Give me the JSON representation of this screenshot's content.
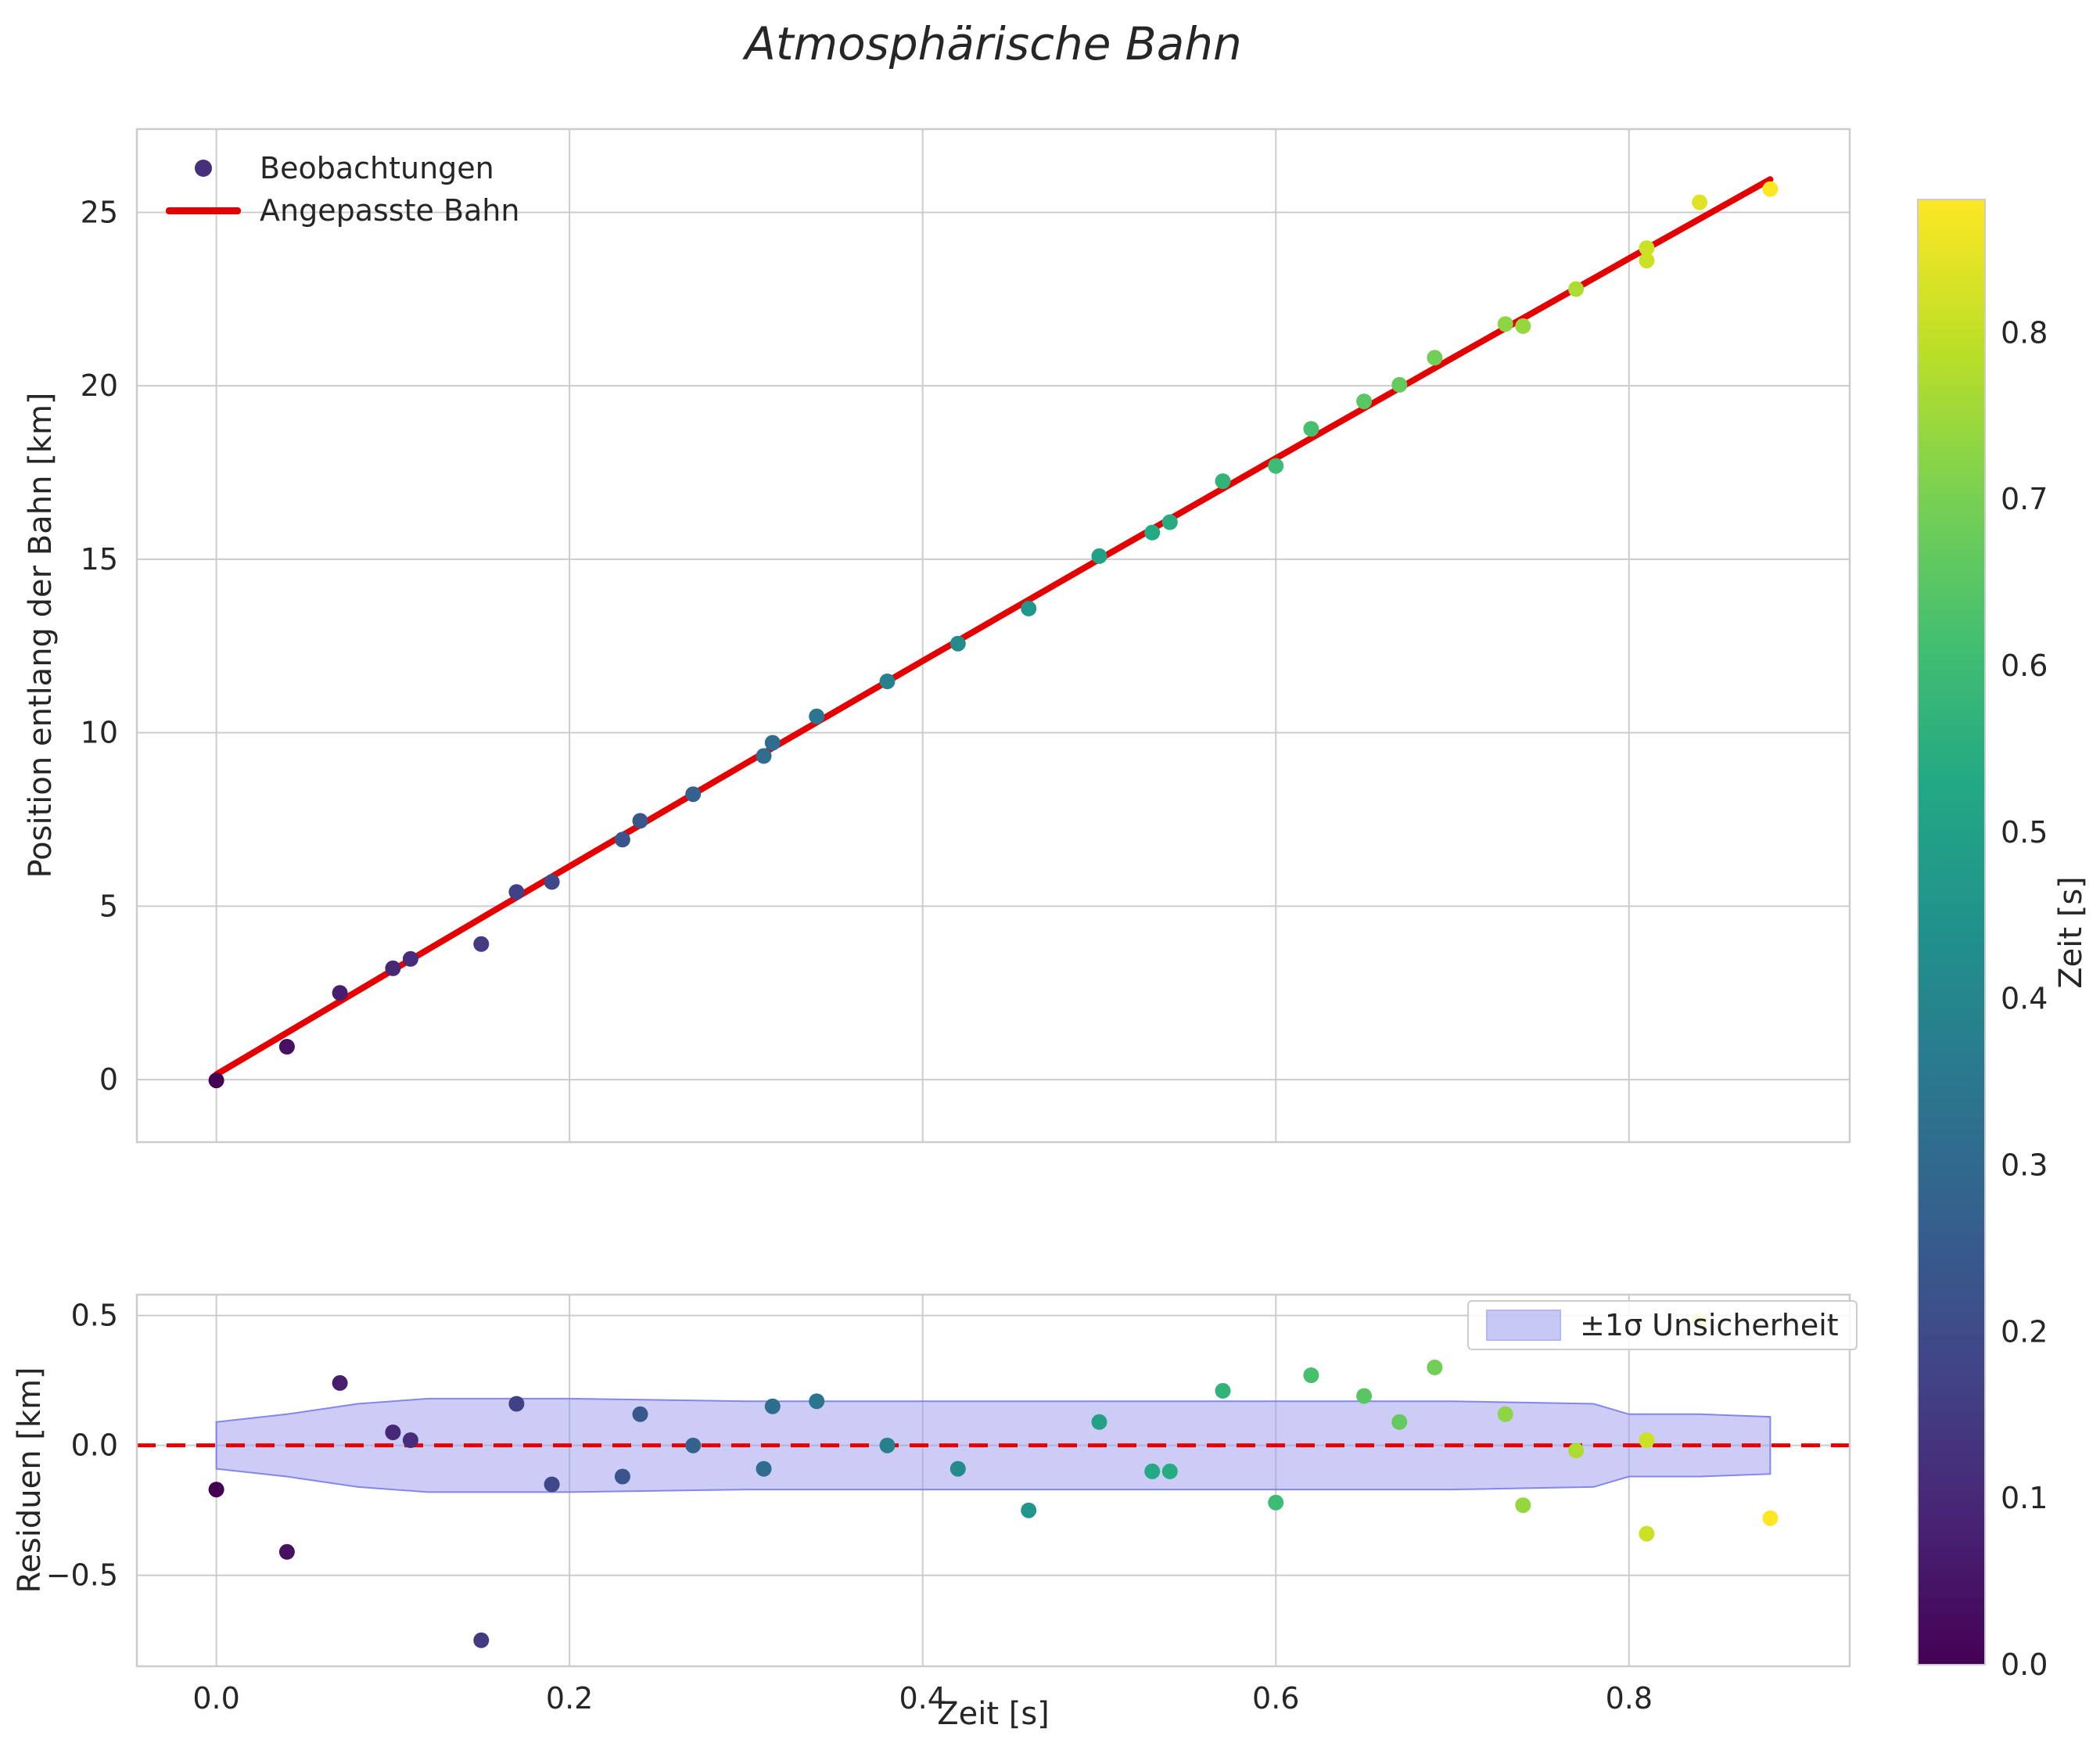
{
  "title": "Atmosphärische Bahn",
  "axes": {
    "top": {
      "ylabel": "Position entlang der Bahn [km]",
      "yticks": [
        0,
        5,
        10,
        15,
        20,
        25
      ],
      "ytick_labels": [
        "0",
        "5",
        "10",
        "15",
        "20",
        "25"
      ],
      "xticks": [
        0,
        0.2,
        0.4,
        0.6,
        0.8
      ]
    },
    "bottom": {
      "xlabel": "Zeit [s]",
      "ylabel": "Residuen [km]",
      "yticks": [
        -0.5,
        0,
        0.5
      ],
      "ytick_labels": [
        "−0.5",
        "0.0",
        "0.5"
      ],
      "xticks": [
        0,
        0.2,
        0.4,
        0.6,
        0.8
      ],
      "xtick_labels": [
        "0.0",
        "0.2",
        "0.4",
        "0.6",
        "0.8"
      ]
    },
    "colorbar": {
      "label": "Zeit [s]",
      "vmin": 0,
      "vmax": 0.88,
      "ticks": [
        0,
        0.1,
        0.2,
        0.3,
        0.4,
        0.5,
        0.6,
        0.7,
        0.8
      ],
      "tick_labels": [
        "0.0",
        "0.1",
        "0.2",
        "0.3",
        "0.4",
        "0.5",
        "0.6",
        "0.7",
        "0.8"
      ]
    }
  },
  "legend": {
    "observations": "Beobachtungen",
    "fit": "Angepasste Bahn",
    "band": "±1σ Unsicherheit"
  },
  "colors": {
    "background": "#ffffff",
    "text": "#262626",
    "grid": "#cccccc",
    "spine": "#cccccc",
    "fit_line": "#e50000",
    "zero_line": "#e50000",
    "band_fill": "#9a9af0",
    "band_edge": "#7b7bec",
    "legend_marker": "#46307e",
    "viridis_stops": [
      [
        0.0,
        "#440154"
      ],
      [
        0.1,
        "#482475"
      ],
      [
        0.2,
        "#414487"
      ],
      [
        0.3,
        "#355f8d"
      ],
      [
        0.4,
        "#2a788e"
      ],
      [
        0.5,
        "#21918c"
      ],
      [
        0.6,
        "#22a884"
      ],
      [
        0.7,
        "#44bf70"
      ],
      [
        0.8,
        "#7ad151"
      ],
      [
        0.9,
        "#bddf26"
      ],
      [
        1.0,
        "#fde725"
      ]
    ]
  },
  "chart_data": [
    {
      "type": "scatter",
      "title": "Atmosphärische Bahn",
      "xlabel": "Zeit [s]",
      "ylabel": "Position entlang der Bahn [km]",
      "xlim": [
        -0.045,
        0.925
      ],
      "ylim": [
        -1.8,
        27.4
      ],
      "grid": true,
      "colormap": "viridis",
      "color_by": "t",
      "legend_position": "upper left",
      "series": [
        {
          "name": "Beobachtungen",
          "type": "scatter",
          "t": [
            0,
            0.04,
            0.07,
            0.1,
            0.11,
            0.15,
            0.17,
            0.19,
            0.23,
            0.24,
            0.27,
            0.31,
            0.315,
            0.34,
            0.38,
            0.42,
            0.46,
            0.5,
            0.53,
            0.54,
            0.57,
            0.6,
            0.62,
            0.65,
            0.67,
            0.69,
            0.73,
            0.74,
            0.77,
            0.81,
            0.81,
            0.84,
            0.88
          ],
          "y": [
            -0.02,
            0.95,
            2.5,
            3.21,
            3.48,
            3.91,
            5.41,
            5.7,
            6.92,
            7.46,
            8.23,
            9.33,
            9.71,
            10.47,
            11.48,
            12.57,
            13.58,
            15.09,
            15.77,
            16.07,
            17.25,
            17.69,
            18.76,
            19.55,
            20.03,
            20.81,
            21.78,
            21.72,
            22.79,
            23.97,
            23.61,
            25.29,
            25.67
          ]
        },
        {
          "name": "Angepasste Bahn",
          "type": "line",
          "t": [
            0,
            0.1,
            0.2,
            0.3,
            0.4,
            0.5,
            0.6,
            0.7,
            0.8,
            0.88
          ],
          "y": [
            0.15,
            3.16,
            6.15,
            9.12,
            12.07,
            15.0,
            17.91,
            20.8,
            23.67,
            25.95
          ]
        }
      ]
    },
    {
      "type": "scatter",
      "xlabel": "Zeit [s]",
      "ylabel": "Residuen [km]",
      "xlim": [
        -0.045,
        0.925
      ],
      "ylim": [
        -0.85,
        0.58
      ],
      "grid": true,
      "legend_position": "upper right",
      "series": [
        {
          "name": "Residuen",
          "type": "scatter",
          "t": [
            0,
            0.04,
            0.07,
            0.1,
            0.11,
            0.15,
            0.17,
            0.19,
            0.23,
            0.24,
            0.27,
            0.31,
            0.315,
            0.34,
            0.38,
            0.42,
            0.46,
            0.5,
            0.53,
            0.54,
            0.57,
            0.6,
            0.62,
            0.65,
            0.67,
            0.69,
            0.73,
            0.74,
            0.77,
            0.81,
            0.81,
            0.84,
            0.88
          ],
          "y": [
            -0.17,
            -0.41,
            0.24,
            0.05,
            0.02,
            -0.75,
            0.16,
            -0.15,
            -0.12,
            0.12,
            0,
            -0.09,
            0.15,
            0.17,
            0,
            -0.09,
            -0.25,
            0.09,
            -0.1,
            -0.1,
            0.21,
            -0.22,
            0.27,
            0.19,
            0.09,
            0.3,
            0.12,
            -0.23,
            -0.02,
            0.02,
            -0.34,
            0.48,
            -0.28
          ]
        },
        {
          "name": "±1σ Unsicherheit",
          "type": "band",
          "t": [
            0,
            0.04,
            0.08,
            0.12,
            0.2,
            0.3,
            0.4,
            0.5,
            0.6,
            0.7,
            0.78,
            0.8,
            0.84,
            0.88
          ],
          "sigma": [
            0.09,
            0.12,
            0.16,
            0.18,
            0.18,
            0.17,
            0.17,
            0.17,
            0.17,
            0.17,
            0.16,
            0.12,
            0.12,
            0.11
          ]
        },
        {
          "name": "Null-Linie",
          "type": "hline",
          "y": 0
        }
      ]
    }
  ]
}
